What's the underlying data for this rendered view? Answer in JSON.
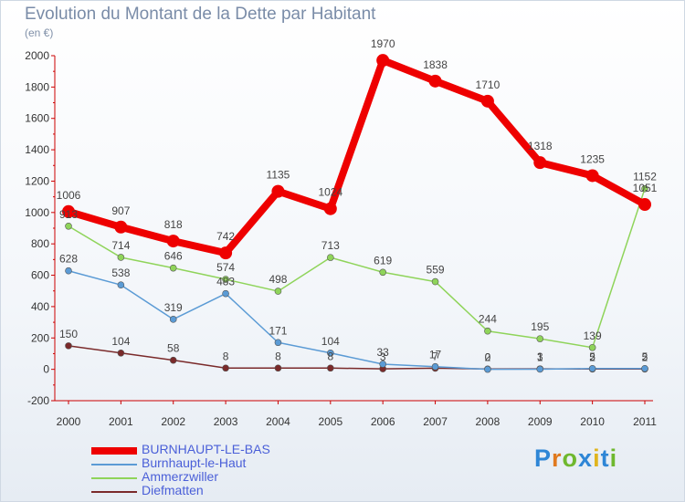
{
  "title": "Evolution du Montant de la Dette par Habitant",
  "unit": "(en €)",
  "brand": {
    "letters": [
      "P",
      "r",
      "o",
      "x",
      "i",
      "t",
      "i"
    ],
    "colors": [
      "#2e86d6",
      "#e07a1f",
      "#6fb82e",
      "#2e86d6",
      "#e0b51f",
      "#2e86d6",
      "#6fb82e"
    ]
  },
  "chart_data": {
    "type": "line",
    "categories": [
      "2000",
      "2001",
      "2002",
      "2003",
      "2004",
      "2005",
      "2006",
      "2007",
      "2008",
      "2009",
      "2010",
      "2011"
    ],
    "ylim": [
      -200,
      2000
    ],
    "yticks": [
      -200,
      0,
      200,
      400,
      600,
      800,
      1000,
      1200,
      1400,
      1600,
      1800,
      2000
    ],
    "grid": false,
    "legend_position": "bottom-left",
    "series": [
      {
        "name": "BURNHAUPT-LE-BAS",
        "color": "#ee0000",
        "width": 8,
        "marker": 7,
        "values": [
          1006,
          907,
          818,
          742,
          1135,
          1024,
          1970,
          1838,
          1710,
          1318,
          1235,
          1051
        ],
        "labels": [
          "1006",
          "907",
          "818",
          "742",
          "1135",
          "1024",
          "1970",
          "1838",
          "1710",
          "1318",
          "1235",
          "1051"
        ]
      },
      {
        "name": "Burnhaupt-le-Haut",
        "color": "#5b9bd5",
        "width": 1.5,
        "marker": 3.5,
        "values": [
          628,
          538,
          319,
          483,
          171,
          104,
          33,
          17,
          0,
          1,
          5,
          5
        ],
        "labels": [
          "628",
          "538",
          "319",
          "483",
          "171",
          "104",
          "33",
          "17",
          "0",
          "1",
          "5",
          "5"
        ]
      },
      {
        "name": "Ammerzwiller",
        "color": "#8fd45a",
        "width": 1.5,
        "marker": 3.5,
        "values": [
          913,
          714,
          646,
          574,
          498,
          713,
          619,
          559,
          244,
          195,
          139,
          1152
        ],
        "labels": [
          "913",
          "714",
          "646",
          "574",
          "498",
          "713",
          "619",
          "559",
          "244",
          "195",
          "139",
          "1152"
        ]
      },
      {
        "name": "Diefmatten",
        "color": "#7a2a2a",
        "width": 1.5,
        "marker": 3.5,
        "values": [
          150,
          104,
          58,
          8,
          8,
          8,
          3,
          7,
          2,
          3,
          2,
          2
        ],
        "labels": [
          "150",
          "104",
          "58",
          "8",
          "8",
          "8",
          "3",
          "7",
          "2",
          "3",
          "2",
          "2"
        ]
      }
    ]
  }
}
